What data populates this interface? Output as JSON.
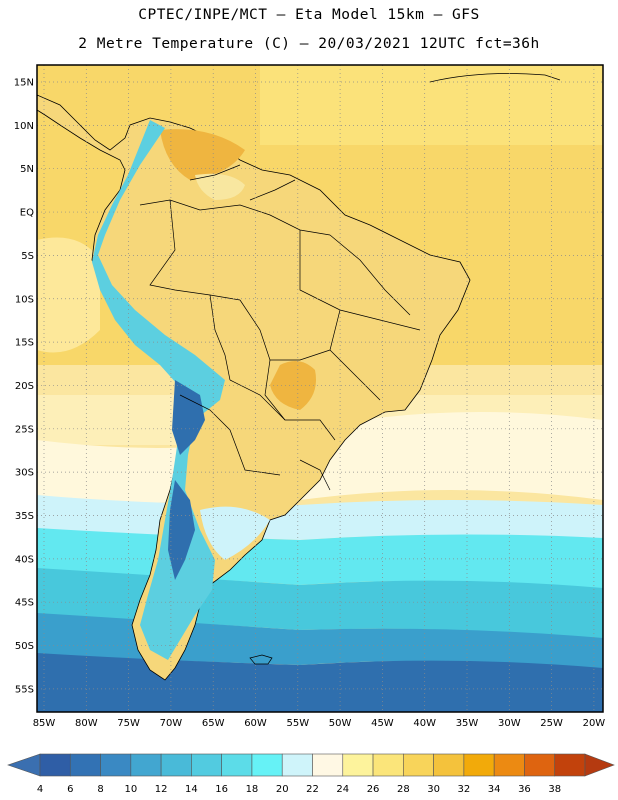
{
  "title_line1": "CPTEC/INPE/MCT –  Eta Model 15km – GFS",
  "title_line2": "2 Metre Temperature (C) – 20/03/2021 12UTC fct=36h",
  "map": {
    "lat_labels": [
      "15N",
      "10N",
      "5N",
      "EQ",
      "5S",
      "10S",
      "15S",
      "20S",
      "25S",
      "30S",
      "35S",
      "40S",
      "45S",
      "50S",
      "55S"
    ],
    "lon_labels": [
      "85W",
      "80W",
      "75W",
      "70W",
      "65W",
      "60W",
      "55W",
      "50W",
      "45W",
      "40W",
      "35W",
      "30W",
      "25W",
      "20W"
    ],
    "grid": "dotted",
    "colors": {
      "ocean_warm": "#f6cd58",
      "ocean_mid": "#fde89a",
      "ocean_cool_1": "#fff8dc",
      "ocean_cool_2": "#cef3fa",
      "ocean_cold_1": "#62e8f0",
      "ocean_cold_2": "#48c8dc",
      "ocean_cold_3": "#3a9fcc",
      "ocean_cold_4": "#2f6fae"
    }
  },
  "colorbar": {
    "labels": [
      "4",
      "6",
      "8",
      "10",
      "12",
      "14",
      "16",
      "18",
      "20",
      "22",
      "24",
      "26",
      "28",
      "30",
      "32",
      "34",
      "36",
      "38"
    ],
    "colors": [
      "#2f5ea6",
      "#3272b4",
      "#3a89c3",
      "#42a6d0",
      "#49bad8",
      "#52cbe0",
      "#5cdce8",
      "#66f2f6",
      "#cff4fa",
      "#fff8e4",
      "#fdf39c",
      "#fbe57a",
      "#f8d45a",
      "#f4c23c",
      "#f2aa0a",
      "#ec8a12",
      "#de6410",
      "#c2420c"
    ],
    "under_color": "#3a6fb0",
    "over_color": "#b53a10"
  }
}
